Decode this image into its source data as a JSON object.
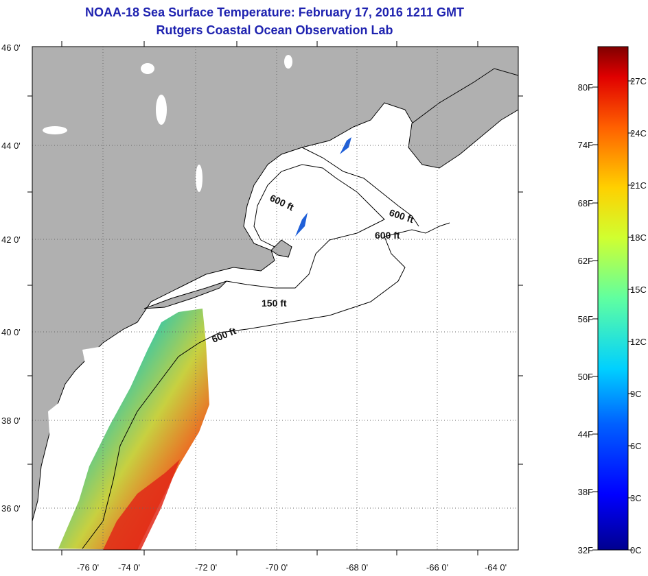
{
  "title": {
    "line1": "NOAA-18 Sea Surface Temperature:  February 17, 2016 1211 GMT",
    "line2": "Rutgers Coastal Ocean Observation Lab"
  },
  "map": {
    "lat_ticks": [
      "46 0'",
      "44 0'",
      "42 0'",
      "40 0'",
      "38 0'",
      "36 0'"
    ],
    "lon_ticks": [
      "-76 0'",
      "-74 0'",
      "-72 0'",
      "-70 0'",
      "-68 0'",
      "-66 0'",
      "-64 0'"
    ],
    "contour_labels": [
      "600 ft",
      "600 ft",
      "600 ft",
      "150 ft",
      "600 ft"
    ],
    "colors": {
      "land": "#b0b0b0",
      "no_data": "#ffffff",
      "coast": "#000000"
    }
  },
  "colorbar": {
    "fahrenheit": [
      "80F",
      "74F",
      "68F",
      "62F",
      "56F",
      "50F",
      "44F",
      "38F",
      "32F"
    ],
    "celsius": [
      "27C",
      "24C",
      "21C",
      "18C",
      "15C",
      "12C",
      "9C",
      "6C",
      "3C",
      "0C"
    ],
    "range_c": [
      0,
      29
    ]
  }
}
